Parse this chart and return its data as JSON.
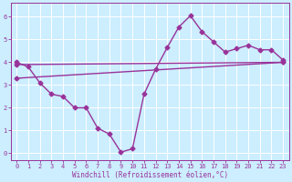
{
  "xlabel": "Windchill (Refroidissement éolien,°C)",
  "bg_color": "#cceeff",
  "line_color": "#993399",
  "grid_color": "#ffffff",
  "xlim": [
    -0.5,
    23.5
  ],
  "ylim": [
    -0.3,
    6.6
  ],
  "xticks": [
    0,
    1,
    2,
    3,
    4,
    5,
    6,
    7,
    8,
    9,
    10,
    11,
    12,
    13,
    14,
    15,
    16,
    17,
    18,
    19,
    20,
    21,
    22,
    23
  ],
  "yticks": [
    0,
    1,
    2,
    3,
    4,
    5,
    6
  ],
  "curve1_x": [
    0,
    1,
    2,
    3,
    4,
    5,
    6,
    7,
    8,
    9,
    10,
    11,
    12,
    13,
    14,
    15,
    16,
    17,
    18,
    19,
    20,
    21,
    22,
    23
  ],
  "curve1_y": [
    4.0,
    3.8,
    3.1,
    2.6,
    2.5,
    2.0,
    2.0,
    1.1,
    0.85,
    0.05,
    0.2,
    2.6,
    3.7,
    4.65,
    5.55,
    6.05,
    5.35,
    4.9,
    4.45,
    4.6,
    4.75,
    4.55,
    4.55,
    4.1
  ],
  "curve2_x": [
    0,
    23
  ],
  "curve2_y": [
    3.3,
    4.0
  ],
  "curve3_x": [
    0,
    23
  ],
  "curve3_y": [
    3.9,
    4.0
  ],
  "marker": "D",
  "markersize": 2.5,
  "linewidth": 1.0,
  "tick_fontsize": 5.0,
  "xlabel_fontsize": 5.5
}
